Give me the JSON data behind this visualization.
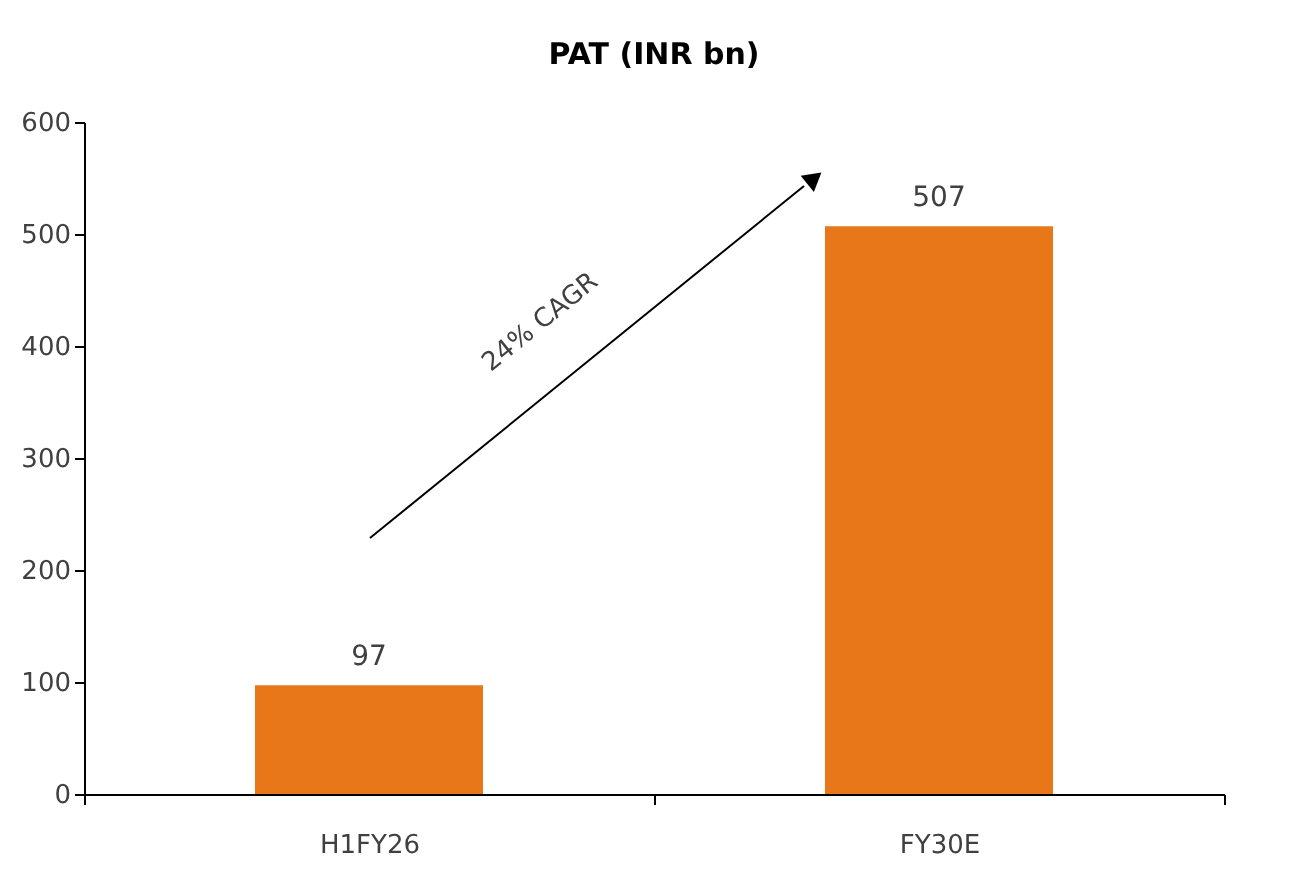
{
  "chart_data": {
    "type": "bar",
    "title": "PAT (INR bn)",
    "categories": [
      "H1FY26",
      "FY30E"
    ],
    "values": [
      97,
      507
    ],
    "color": "#e8771a",
    "ylim": [
      0,
      600
    ],
    "yticks": [
      0,
      100,
      200,
      300,
      400,
      500,
      600
    ],
    "grid": false,
    "data_labels": true,
    "annotations": [
      "24% CAGR"
    ]
  }
}
